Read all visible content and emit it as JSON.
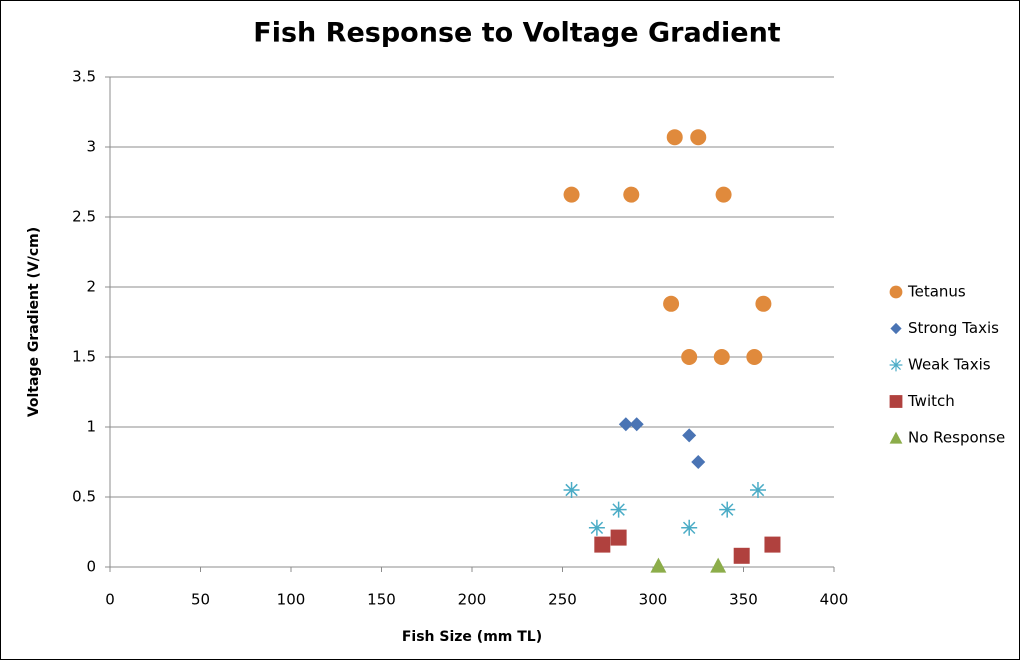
{
  "chart_data": {
    "type": "scatter",
    "title": "Fish Response to Voltage Gradient",
    "x_label": "Fish Size (mm TL)",
    "y_label": "Voltage Gradient (V/cm)",
    "xlim": [
      0,
      400
    ],
    "xticks": [
      0,
      50,
      100,
      150,
      200,
      250,
      300,
      350,
      400
    ],
    "ylim": [
      0,
      3.5
    ],
    "yticks": [
      0,
      0.5,
      1,
      1.5,
      2,
      2.5,
      3,
      3.5
    ],
    "grid": true,
    "legend": "right",
    "series": [
      {
        "name": "Tetanus",
        "color": "#e08a3c",
        "marker": "circle",
        "x": [
          255,
          288,
          339,
          312,
          325,
          310,
          361,
          320,
          338,
          356
        ],
        "values": [
          2.66,
          2.66,
          2.66,
          3.07,
          3.07,
          1.88,
          1.88,
          1.5,
          1.5,
          1.5
        ]
      },
      {
        "name": "Strong Taxis",
        "color": "#4a74b4",
        "marker": "diamond",
        "x": [
          285,
          291,
          320,
          325
        ],
        "values": [
          1.02,
          1.02,
          0.94,
          0.75
        ]
      },
      {
        "name": "Weak Taxis",
        "color": "#4bacc6",
        "marker": "asterisk",
        "x": [
          255,
          269,
          281,
          320,
          341,
          358
        ],
        "values": [
          0.55,
          0.28,
          0.41,
          0.28,
          0.41,
          0.55
        ]
      },
      {
        "name": "Twitch",
        "color": "#b0413e",
        "marker": "square",
        "x": [
          272,
          281,
          349,
          366
        ],
        "values": [
          0.16,
          0.21,
          0.08,
          0.16
        ]
      },
      {
        "name": "No Response",
        "color": "#8cad4a",
        "marker": "triangle",
        "x": [
          303,
          336
        ],
        "values": [
          0.01,
          0.01
        ]
      }
    ]
  }
}
